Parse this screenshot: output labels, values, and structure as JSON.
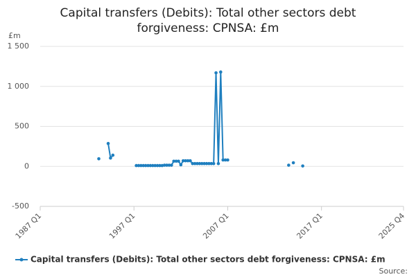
{
  "chart_data": {
    "type": "line",
    "title": "Capital transfers (Debits): Total other sectors debt forgiveness: CPNSA: £m",
    "y_label": "£m",
    "source": "Source:",
    "categories": [
      "1987 Q1",
      null,
      null,
      null,
      null,
      null,
      null,
      null,
      null,
      null,
      null,
      null,
      null,
      null,
      null,
      null,
      null,
      null,
      null,
      null,
      null,
      null,
      null,
      null,
      null,
      null,
      null,
      null,
      null,
      null,
      null,
      null,
      null,
      null,
      null,
      null,
      null,
      null,
      null,
      null,
      "1997 Q1",
      null,
      null,
      null,
      null,
      null,
      null,
      null,
      null,
      null,
      null,
      null,
      null,
      null,
      null,
      null,
      null,
      null,
      null,
      null,
      null,
      null,
      null,
      null,
      null,
      null,
      null,
      null,
      null,
      null,
      null,
      null,
      null,
      null,
      null,
      null,
      null,
      null,
      null,
      null,
      "2007 Q1",
      null,
      null,
      null,
      null,
      null,
      null,
      null,
      null,
      null,
      null,
      null,
      null,
      null,
      null,
      null,
      null,
      null,
      null,
      null,
      null,
      null,
      null,
      null,
      null,
      null,
      null,
      null,
      null,
      null,
      null,
      null,
      null,
      null,
      null,
      null,
      null,
      null,
      null,
      null,
      "2017 Q1",
      null,
      null,
      null,
      null,
      null,
      null,
      null,
      null,
      null,
      null,
      null,
      null,
      null,
      null,
      null,
      null,
      null,
      null,
      null,
      null,
      null,
      null,
      null,
      null,
      null,
      null,
      null,
      null,
      null,
      null,
      null,
      null,
      null,
      null,
      "2025 Q4"
    ],
    "series": [
      {
        "name": "Capital transfers (Debits): Total other sectors debt forgiveness: CPNSA: £m",
        "color": "#1f7fbf",
        "values": [
          null,
          null,
          null,
          null,
          null,
          null,
          null,
          null,
          null,
          null,
          null,
          null,
          null,
          null,
          null,
          null,
          null,
          null,
          null,
          null,
          null,
          null,
          null,
          null,
          null,
          95,
          null,
          null,
          null,
          286,
          104,
          140,
          null,
          null,
          null,
          null,
          null,
          null,
          null,
          null,
          null,
          10,
          10,
          10,
          10,
          10,
          10,
          10,
          10,
          10,
          10,
          10,
          10,
          15,
          15,
          15,
          15,
          65,
          65,
          65,
          20,
          70,
          70,
          70,
          70,
          35,
          35,
          35,
          35,
          35,
          35,
          35,
          35,
          35,
          35,
          1170,
          35,
          1180,
          80,
          80,
          80,
          null,
          null,
          null,
          null,
          null,
          null,
          null,
          null,
          null,
          null,
          null,
          null,
          null,
          null,
          null,
          null,
          null,
          null,
          null,
          null,
          null,
          null,
          null,
          null,
          null,
          15,
          null,
          45,
          null,
          null,
          null,
          5,
          null,
          null,
          null,
          null,
          null,
          null,
          null,
          null,
          null,
          null,
          null,
          null,
          null,
          null,
          null,
          null,
          null,
          null,
          null,
          null,
          null,
          null,
          null,
          null,
          null,
          null,
          null,
          null,
          null,
          null,
          null,
          null,
          null,
          null,
          null,
          null,
          null,
          null,
          null,
          null,
          null,
          null,
          null
        ]
      }
    ],
    "ylim": [
      -500,
      1500
    ],
    "yticks": [
      -500,
      0,
      500,
      {
        "value": 1000,
        "label": "1 000"
      },
      {
        "value": 1500,
        "label": "1 500"
      }
    ],
    "grid": true
  }
}
